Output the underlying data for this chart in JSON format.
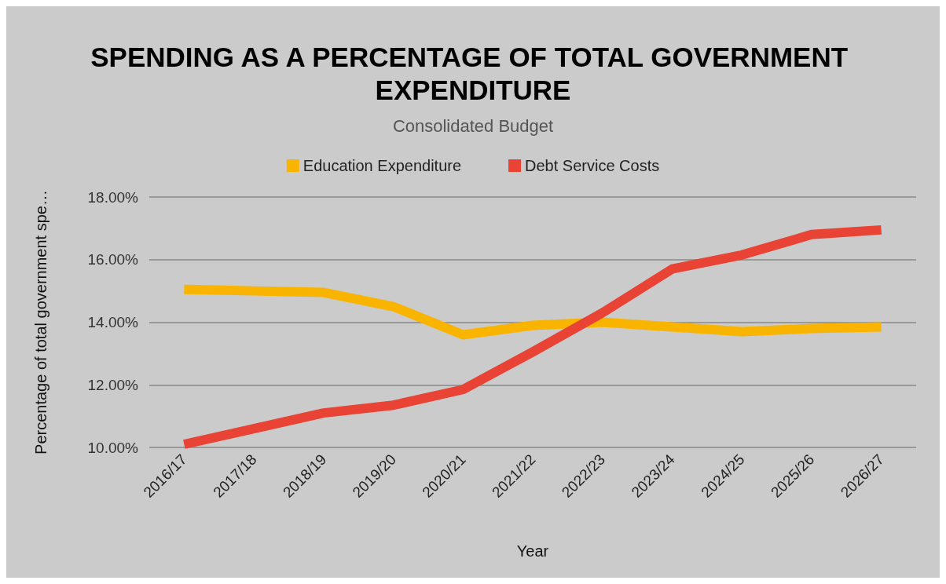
{
  "chart_data": {
    "type": "line",
    "title": "SPENDING AS A PERCENTAGE OF TOTAL GOVERNMENT EXPENDITURE",
    "subtitle": "Consolidated Budget",
    "xlabel": "Year",
    "ylabel": "Percentage of total government spe…",
    "categories": [
      "2016/17",
      "2017/18",
      "2018/19",
      "2019/20",
      "2020/21",
      "2021/22",
      "2022/23",
      "2023/24",
      "2024/25",
      "2025/26",
      "2026/27"
    ],
    "series": [
      {
        "name": "Education Expenditure",
        "color": "#f9b400",
        "values": [
          15.05,
          15.0,
          14.95,
          14.5,
          13.6,
          13.9,
          14.0,
          13.85,
          13.7,
          13.8,
          13.85
        ]
      },
      {
        "name": "Debt Service Costs",
        "color": "#e84335",
        "values": [
          10.1,
          10.6,
          11.1,
          11.35,
          11.85,
          13.05,
          14.3,
          15.7,
          16.15,
          16.8,
          16.95
        ]
      }
    ],
    "ylim": [
      10,
      18
    ],
    "yticks": [
      {
        "value": 10,
        "label": "10.00%"
      },
      {
        "value": 12,
        "label": "12.00%"
      },
      {
        "value": 14,
        "label": "14.00%"
      },
      {
        "value": 16,
        "label": "16.00%"
      },
      {
        "value": 18,
        "label": "18.00%"
      }
    ],
    "grid": "y",
    "legend": "top",
    "marker": "none",
    "line_style": "solid"
  }
}
